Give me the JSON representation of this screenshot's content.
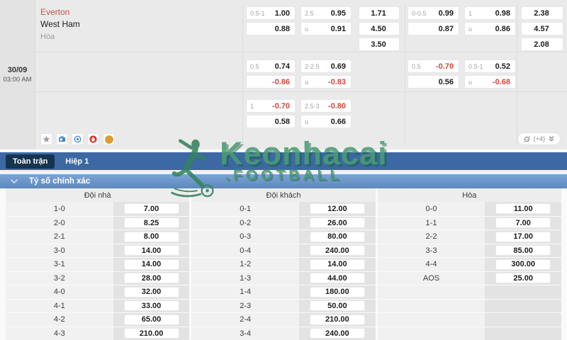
{
  "match": {
    "date": "30/09",
    "time": "03:00 AM",
    "home": "Everton",
    "away": "West Ham",
    "draw_label": "Hòa",
    "more_count": "(+4)"
  },
  "odds": {
    "rows": [
      {
        "groups": [
          {
            "cells": [
              {
                "l": "0.5-1",
                "v": "1.00"
              },
              {
                "l": "",
                "v": "0.88"
              }
            ]
          },
          {
            "cells": [
              {
                "l": "2.5",
                "v": "0.95"
              },
              {
                "l": "u",
                "v": "0.91"
              }
            ]
          },
          {
            "cells": [
              {
                "v": "1.71"
              },
              {
                "v": "4.50"
              },
              {
                "v": "3.50"
              }
            ]
          },
          {
            "cells": [
              {
                "l": "0-0.5",
                "v": "0.99"
              },
              {
                "l": "",
                "v": "0.87"
              }
            ]
          },
          {
            "cells": [
              {
                "l": "1",
                "v": "0.98"
              },
              {
                "l": "u",
                "v": "0.86"
              }
            ]
          },
          {
            "cells": [
              {
                "v": "2.38"
              },
              {
                "v": "4.57"
              },
              {
                "v": "2.08"
              }
            ]
          }
        ]
      },
      {
        "groups": [
          {
            "cells": [
              {
                "l": "0.5",
                "v": "0.74"
              },
              {
                "l": "",
                "v": "-0.86",
                "neg": true
              }
            ]
          },
          {
            "cells": [
              {
                "l": "2-2.5",
                "v": "0.69"
              },
              {
                "l": "u",
                "v": "-0.83",
                "neg": true
              }
            ]
          },
          {
            "cells": []
          },
          {
            "cells": [
              {
                "l": "0.5",
                "v": "-0.70",
                "neg": true
              },
              {
                "l": "",
                "v": "0.56"
              }
            ]
          },
          {
            "cells": [
              {
                "l": "0.5-1",
                "v": "0.52"
              },
              {
                "l": "u",
                "v": "-0.68",
                "neg": true
              }
            ]
          },
          {
            "cells": []
          }
        ]
      },
      {
        "groups": [
          {
            "cells": [
              {
                "l": "1",
                "v": "-0.70",
                "neg": true
              },
              {
                "l": "",
                "v": "0.58"
              }
            ]
          },
          {
            "cells": [
              {
                "l": "2.5-3",
                "v": "-0.80",
                "neg": true
              },
              {
                "l": "u",
                "v": "0.66"
              }
            ]
          },
          {
            "cells": []
          },
          {
            "cells": []
          },
          {
            "cells": []
          },
          {
            "cells": []
          }
        ]
      }
    ]
  },
  "tabs": {
    "full": "Toàn trận",
    "half": "Hiệp 1"
  },
  "section": {
    "title": "Tỷ số chính xác"
  },
  "watermark": {
    "line1": "Keonhacai",
    "line2": ".FOOTBALL"
  },
  "score_table": {
    "headers": [
      "Đội nhà",
      "Đội khách",
      "Hòa"
    ],
    "columns": [
      {
        "rows": [
          [
            "1-0",
            "7.00"
          ],
          [
            "2-0",
            "8.25"
          ],
          [
            "2-1",
            "8.00"
          ],
          [
            "3-0",
            "14.00"
          ],
          [
            "3-1",
            "14.00"
          ],
          [
            "3-2",
            "28.00"
          ],
          [
            "4-0",
            "32.00"
          ],
          [
            "4-1",
            "33.00"
          ],
          [
            "4-2",
            "65.00"
          ],
          [
            "4-3",
            "210.00"
          ]
        ]
      },
      {
        "rows": [
          [
            "0-1",
            "12.00"
          ],
          [
            "0-2",
            "26.00"
          ],
          [
            "0-3",
            "80.00"
          ],
          [
            "0-4",
            "240.00"
          ],
          [
            "1-2",
            "14.00"
          ],
          [
            "1-3",
            "44.00"
          ],
          [
            "1-4",
            "180.00"
          ],
          [
            "2-3",
            "50.00"
          ],
          [
            "2-4",
            "210.00"
          ],
          [
            "3-4",
            "240.00"
          ]
        ]
      },
      {
        "rows": [
          [
            "0-0",
            "11.00"
          ],
          [
            "1-1",
            "7.00"
          ],
          [
            "2-2",
            "17.00"
          ],
          [
            "3-3",
            "85.00"
          ],
          [
            "4-4",
            "300.00"
          ],
          [
            "AOS",
            "25.00"
          ],
          [
            "",
            ""
          ],
          [
            "",
            ""
          ],
          [
            "",
            ""
          ],
          [
            "",
            ""
          ]
        ]
      }
    ]
  }
}
